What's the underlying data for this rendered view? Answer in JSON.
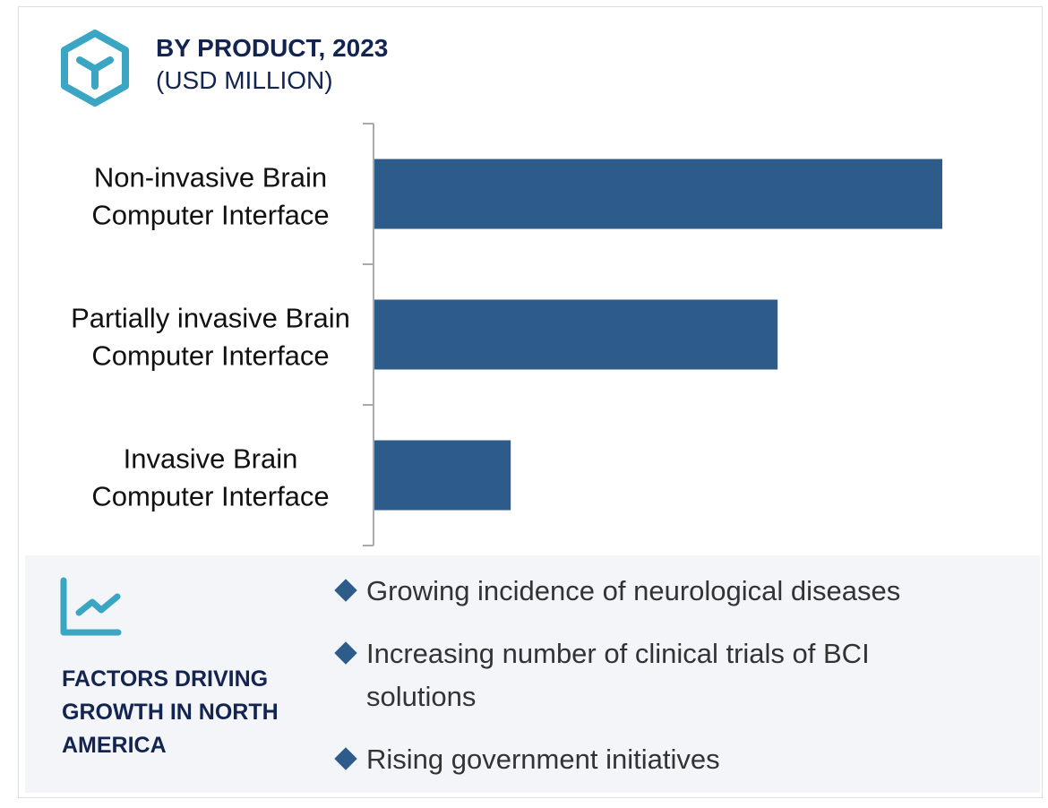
{
  "header": {
    "title": "BY PRODUCT, 2023",
    "subtitle": "(USD MILLION)",
    "icon": "hexagon-y-icon"
  },
  "chart_data": {
    "type": "bar",
    "orientation": "horizontal",
    "title": "BY PRODUCT, 2023",
    "subtitle": "(USD MILLION)",
    "categories": [
      [
        "Non-invasive Brain",
        "Computer Interface"
      ],
      [
        "Partially invasive Brain",
        "Computer Interface"
      ],
      [
        "Invasive Brain",
        "Computer Interface"
      ]
    ],
    "values": [
      1.0,
      0.71,
      0.24
    ],
    "value_note_relative": true,
    "bar_color": "#2e5c8a",
    "grid": false
  },
  "factors": {
    "icon": "line-chart-growth-icon",
    "title": "FACTORS DRIVING GROWTH IN NORTH AMERICA",
    "items": [
      {
        "text": "Growing incidence of neurological diseases"
      },
      {
        "text": "Increasing number of clinical trials of BCI solutions"
      },
      {
        "text": "Rising government initiatives"
      }
    ],
    "bullet_color": "#2e5c8a",
    "accent_color": "#3aa6c4",
    "panel_color": "#f3f5f9"
  }
}
